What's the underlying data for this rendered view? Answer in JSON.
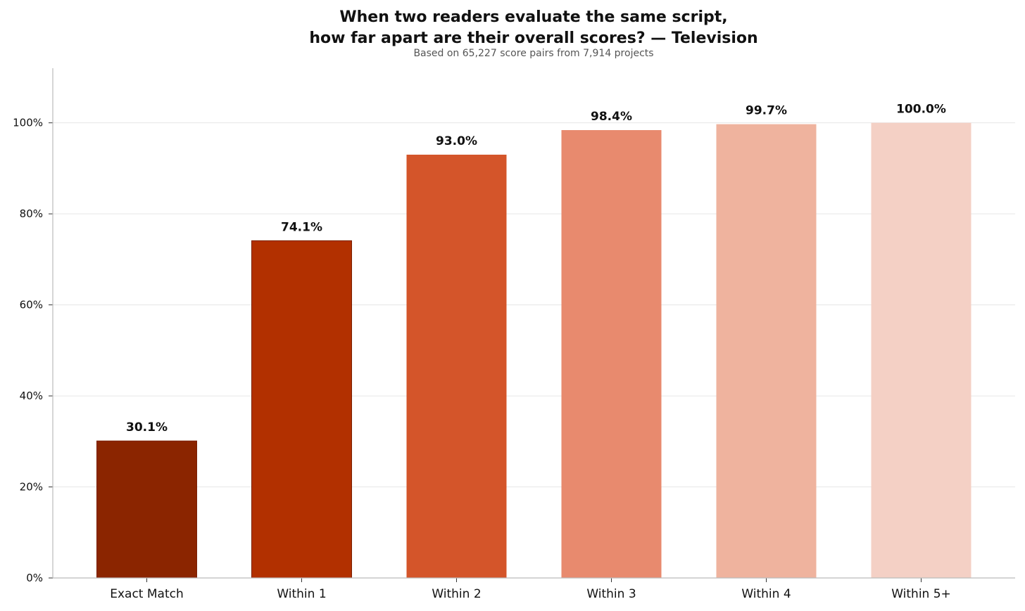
{
  "chart_data": {
    "type": "bar",
    "title_lines": [
      "When two readers evaluate the same script,",
      "how far apart are their overall scores? — Television"
    ],
    "subtitle": "Based on 65,227 score pairs from 7,914 projects",
    "xlabel": "",
    "ylabel": "",
    "categories": [
      "Exact Match",
      "Within 1",
      "Within 2",
      "Within 3",
      "Within 4",
      "Within 5+"
    ],
    "values": [
      30.1,
      74.1,
      93.0,
      98.4,
      99.7,
      100.0
    ],
    "data_labels": [
      "30.1%",
      "74.1%",
      "93.0%",
      "98.4%",
      "99.7%",
      "100.0%"
    ],
    "colors": [
      "#8b2500",
      "#b23000",
      "#d4552a",
      "#e88a6e",
      "#efb39e",
      "#f4d0c5"
    ],
    "bar_edge_color": "#7a1f00",
    "ylim": [
      0,
      112
    ],
    "yticks": [
      0,
      20,
      40,
      60,
      80,
      100
    ],
    "ytick_labels": [
      "0%",
      "20%",
      "40%",
      "60%",
      "80%",
      "100%"
    ],
    "grid": true,
    "grid_color": "#e6e6e6",
    "legend": "none"
  }
}
